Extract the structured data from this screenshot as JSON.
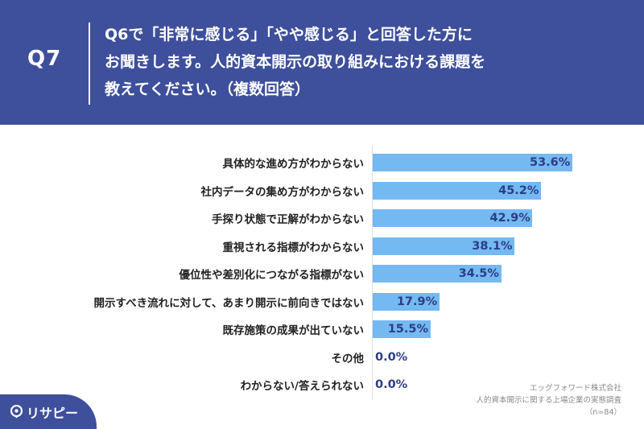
{
  "header": {
    "qnum": "Q7",
    "question_lines": [
      "Q6で「非常に感じる」「やや感じる」と回答した方に",
      "お聞きします。人的資本開示の取り組みにおける課題を",
      "教えてください。（複数回答）"
    ]
  },
  "chart_data": {
    "type": "bar",
    "orientation": "horizontal",
    "categories": [
      "具体的な進め方がわからない",
      "社内データの集め方がわからない",
      "手探り状態で正解がわからない",
      "重視される指標がわからない",
      "優位性や差別化につながる指標がない",
      "開示すべき流れに対して、あまり開示に前向きではない",
      "既存施策の成果が出ていない",
      "その他",
      "わからない/答えられない"
    ],
    "values": [
      53.6,
      45.2,
      42.9,
      38.1,
      34.5,
      17.9,
      15.5,
      0.0,
      0.0
    ],
    "value_labels": [
      "53.6%",
      "45.2%",
      "42.9%",
      "38.1%",
      "34.5%",
      "17.9%",
      "15.5%",
      "0.0%",
      "0.0%"
    ],
    "xlim": [
      0,
      60
    ],
    "grid": false,
    "bar_color": "#74b9f2",
    "label_color": "#2e3d84"
  },
  "source": {
    "line1": "エッグフォワード株式会社",
    "line2": "人的資本開示に関する上場企業の実態調査",
    "line3": "（n=84）"
  },
  "logo": {
    "text": "リサピー",
    "icon": "pin-icon"
  },
  "colors": {
    "background": "#3e4f9b",
    "panel": "#ffffff"
  }
}
